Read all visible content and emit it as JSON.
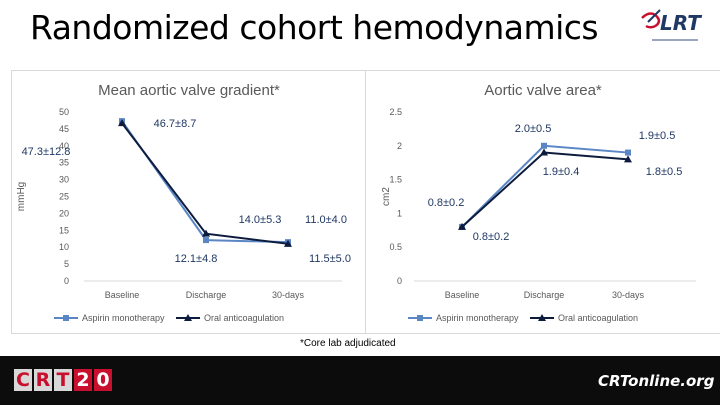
{
  "slide": {
    "title": "Randomized cohort hemodynamics",
    "footnote": "*Core lab adjudicated",
    "top_logo_text": "LRT",
    "footer_left_logo": [
      "C",
      "R",
      "T",
      "2",
      "0"
    ],
    "footer_right_logo": "CRTonline.org"
  },
  "colors": {
    "aspirin": "#5b86c6",
    "anticoag": "#0d1b3d",
    "label": "#1f3864",
    "axis_text": "#595959",
    "grid": "#d9d9d9",
    "logo_red": "#c8102e"
  },
  "chart_data": [
    {
      "type": "line",
      "title": "Mean aortic valve gradient*",
      "xlabel": "",
      "ylabel": "mmHg",
      "categories": [
        "Baseline",
        "Discharge",
        "30-days"
      ],
      "ylim": [
        0,
        50
      ],
      "yticks": [
        "0",
        "5",
        "10",
        "15",
        "20",
        "25",
        "30",
        "35",
        "40",
        "45",
        "50"
      ],
      "grid": false,
      "legend_position": "bottom",
      "series": [
        {
          "name": "Aspirin monotherapy",
          "values": [
            47.3,
            12.1,
            11.5
          ],
          "marker": "square"
        },
        {
          "name": "Oral anticoagulation",
          "values": [
            46.7,
            14.0,
            11.0
          ],
          "marker": "triangle"
        }
      ],
      "annotations": [
        "46.7±8.7",
        "47.3±12.8",
        "14.0±5.3",
        "11.0±4.0",
        "12.1±4.8",
        "11.5±5.0"
      ]
    },
    {
      "type": "line",
      "title": "Aortic valve area*",
      "xlabel": "",
      "ylabel": "cm2",
      "categories": [
        "Baseline",
        "Discharge",
        "30-days"
      ],
      "ylim": [
        0,
        2.5
      ],
      "yticks": [
        "0",
        "0.5",
        "1",
        "1.5",
        "2",
        "2.5"
      ],
      "grid": false,
      "legend_position": "bottom",
      "series": [
        {
          "name": "Aspirin monotherapy",
          "values": [
            0.8,
            2.0,
            1.9
          ],
          "marker": "square"
        },
        {
          "name": "Oral anticoagulation",
          "values": [
            0.8,
            1.9,
            1.8
          ],
          "marker": "triangle"
        }
      ],
      "annotations": [
        "2.0±0.5",
        "1.9±0.5",
        "1.9±0.4",
        "1.8±0.5",
        "0.8±0.2",
        "0.8±0.2"
      ]
    }
  ]
}
